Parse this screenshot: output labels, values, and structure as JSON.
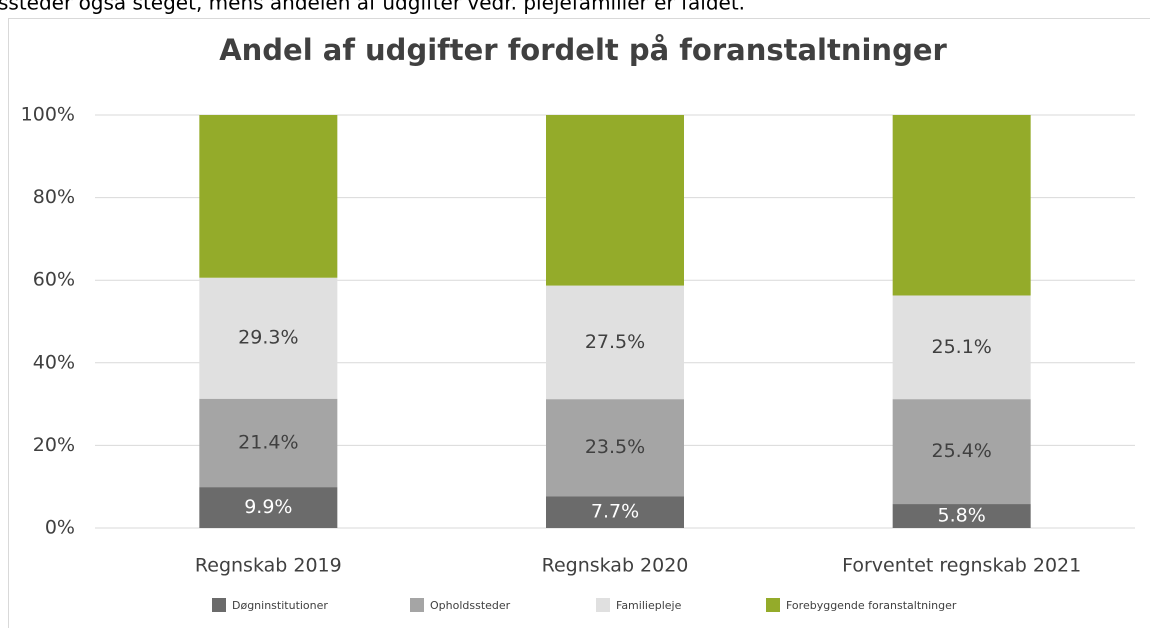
{
  "intro_text": "ssteder også steget, mens andelen af udgifter vedr. plejefamilier er faldet.",
  "chart_data": {
    "type": "stacked_bar",
    "title": "Andel af udgifter fordelt på foranstaltninger",
    "categories": [
      "Regnskab 2019",
      "Regnskab 2020",
      "Forventet regnskab 2021"
    ],
    "series": [
      {
        "name": "Døgninstitutioner",
        "color": "#6b6b6b",
        "label_color": "#ffffff",
        "values": [
          9.9,
          7.7,
          5.8
        ],
        "value_labels": [
          "9.9%",
          "7.7%",
          "5.8%"
        ]
      },
      {
        "name": "Opholdssteder",
        "color": "#a5a5a5",
        "label_color": "#404040",
        "values": [
          21.4,
          23.5,
          25.4
        ],
        "value_labels": [
          "21.4%",
          "23.5%",
          "25.4%"
        ]
      },
      {
        "name": "Familiepleje",
        "color": "#e0e0e0",
        "label_color": "#404040",
        "values": [
          29.3,
          27.5,
          25.1
        ],
        "value_labels": [
          "29.3%",
          "27.5%",
          "25.1%"
        ]
      },
      {
        "name": "Forebyggende foranstaltninger",
        "color": "#94ab2a",
        "values": [
          39.4,
          41.3,
          43.7
        ]
      }
    ],
    "ylim": [
      0,
      100
    ],
    "yticks": [
      {
        "value": 0,
        "label": "0%"
      },
      {
        "value": 20,
        "label": "20%"
      },
      {
        "value": 40,
        "label": "40%"
      },
      {
        "value": 60,
        "label": "60%"
      },
      {
        "value": 80,
        "label": "80%"
      },
      {
        "value": 100,
        "label": "100%"
      }
    ],
    "grid": true,
    "legend": "bottom"
  }
}
